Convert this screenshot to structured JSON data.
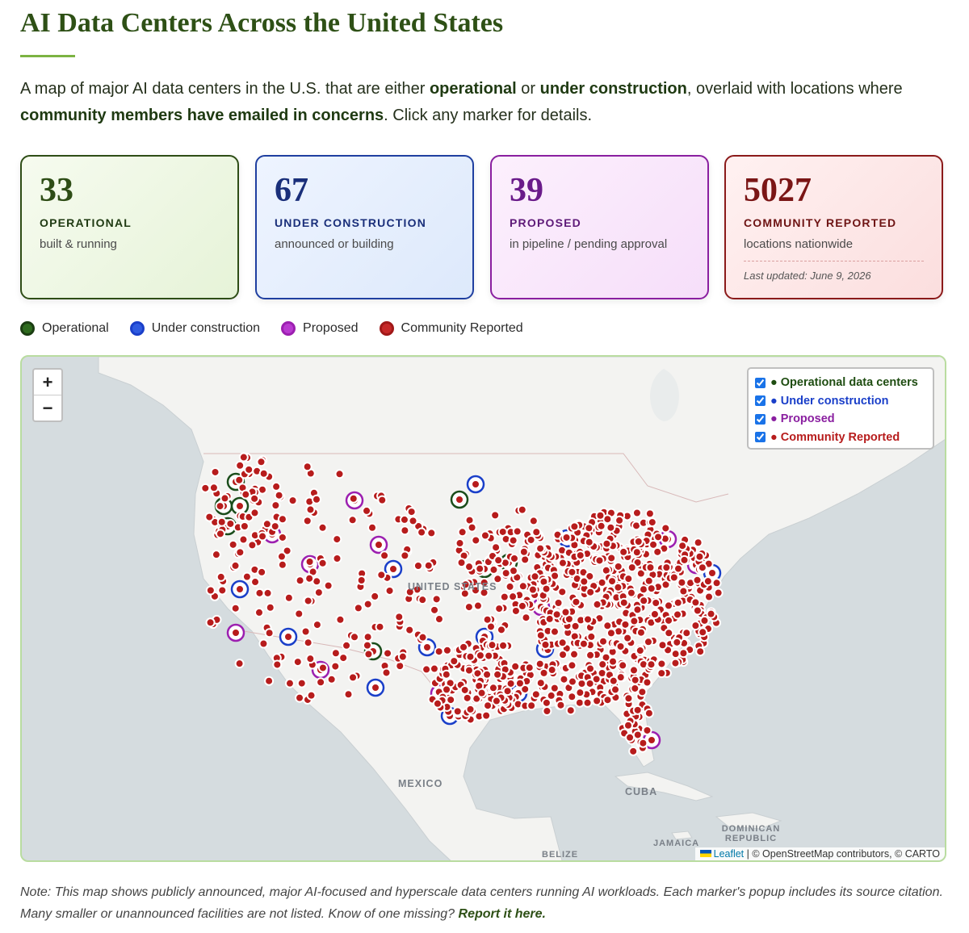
{
  "header": {
    "title": "AI Data Centers Across the United States",
    "intro": [
      "A map of major AI data centers in the U.S. that are either ",
      "operational",
      " or ",
      "under construction",
      ", overlaid with locations where ",
      "community members have emailed in concerns",
      ". Click any marker for details."
    ]
  },
  "stats": [
    {
      "value": 33,
      "label": "OPERATIONAL",
      "note": "built & running"
    },
    {
      "value": 67,
      "label": "UNDER CONSTRUCTION",
      "note": "announced or building"
    },
    {
      "value": 39,
      "label": "PROPOSED",
      "note": "in pipeline / pending approval"
    },
    {
      "value": 5027,
      "label": "COMMUNITY REPORTED",
      "note": "locations nationwide",
      "updated": "Last updated: June 9, 2026"
    }
  ],
  "legend": [
    "Operational",
    "Under construction",
    "Proposed",
    "Community Reported"
  ],
  "map": {
    "zoom_in": "+",
    "zoom_out": "−",
    "layers": [
      "Operational data centers",
      "Under construction",
      "Proposed",
      "Community Reported"
    ],
    "labels": [
      "UNITED STATES",
      "MEXICO",
      "CUBA",
      "JAMAICA",
      "DOMINICAN REPUBLIC",
      "BELIZE"
    ],
    "attribution": {
      "link": "Leaflet",
      "text": "| © OpenStreetMap contributors, © CARTO"
    }
  },
  "note": {
    "text": "Note: This map shows publicly announced, major AI-focused and hyperscale data centers running AI workloads. Each marker's popup includes its source citation. Many smaller or unannounced facilities are not listed. Know of one missing?",
    "link": "Report it here."
  }
}
